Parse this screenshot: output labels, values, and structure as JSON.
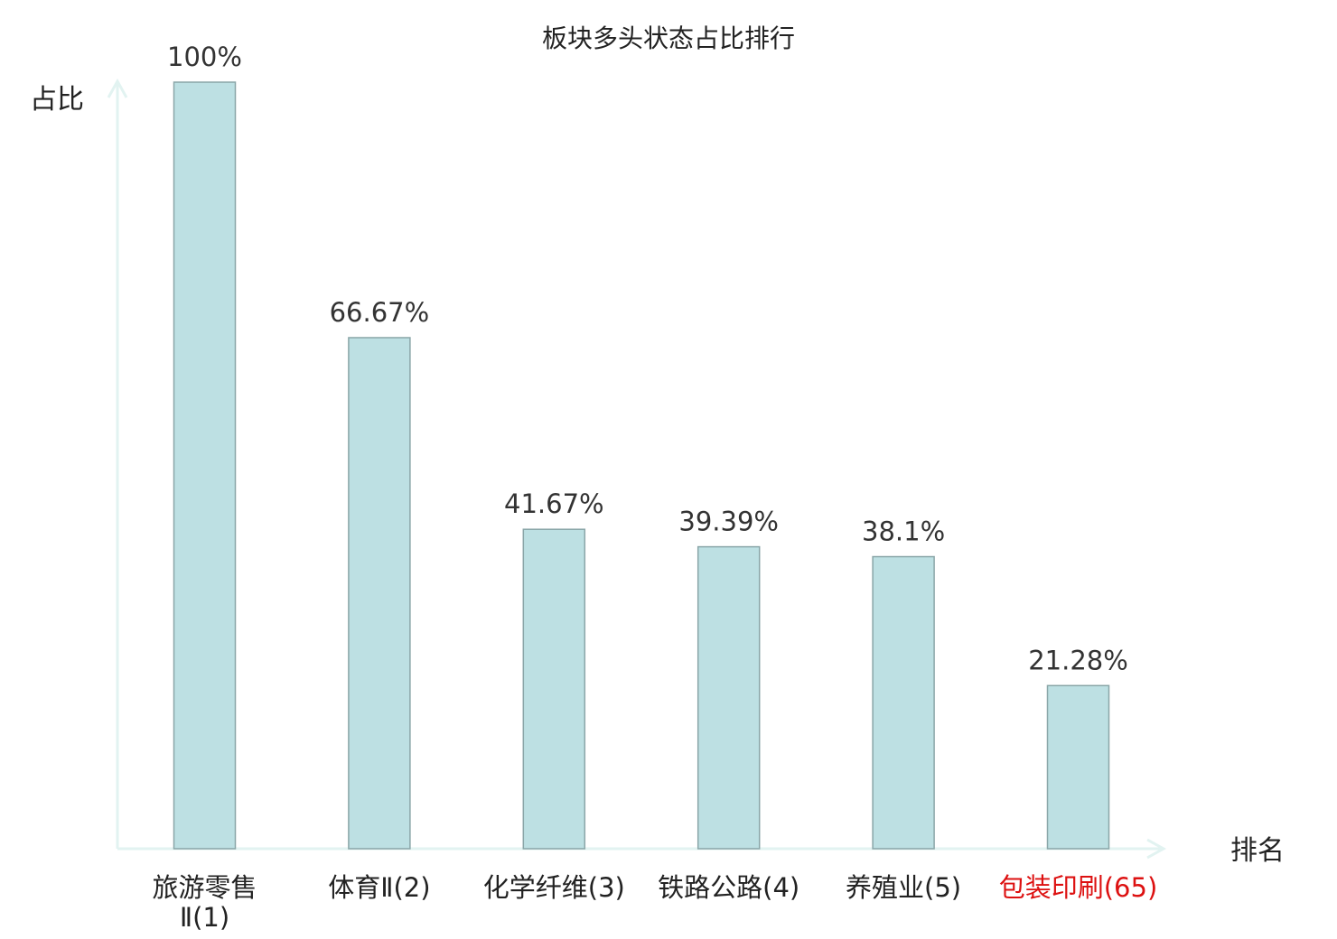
{
  "chart_data": {
    "type": "bar",
    "title": "板块多头状态占比排行",
    "ylabel": "占比",
    "xlabel": "排名",
    "categories": [
      [
        "旅游零售",
        "Ⅱ(1)"
      ],
      [
        "体育Ⅱ(2)"
      ],
      [
        "化学纤维(3)"
      ],
      [
        "铁路公路(4)"
      ],
      [
        "养殖业(5)"
      ],
      [
        "包装印刷(65)"
      ]
    ],
    "values": [
      100,
      66.67,
      41.67,
      39.39,
      38.1,
      21.28
    ],
    "value_labels": [
      "100%",
      "66.67%",
      "41.67%",
      "39.39%",
      "38.1%",
      "21.28%"
    ],
    "highlight_index": 5,
    "ylim": [
      0,
      100
    ],
    "grid": false,
    "colors": {
      "bar_fill": "#bde0e3",
      "bar_stroke": "#8aa6a8",
      "axis": "#e2f3f1",
      "highlight_label": "#dd1111",
      "label": "#222222"
    }
  }
}
